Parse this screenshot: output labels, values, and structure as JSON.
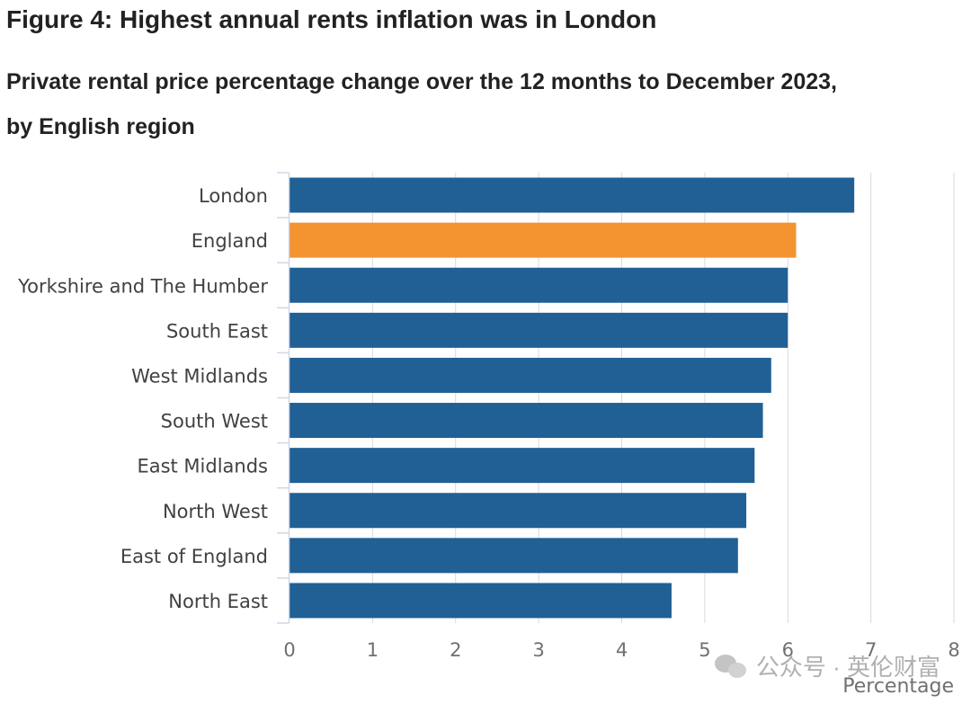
{
  "title": "Figure 4: Highest annual rents inflation was in London",
  "subtitle": "Private rental price percentage change over the 12 months to December 2023, by English region",
  "watermark": "公众号 · 英伦财富",
  "colors": {
    "default_bar": "#206095",
    "highlight_bar": "#F39431",
    "grid": "#d9d9d9",
    "tick_text": "#707070",
    "category_text": "#414042"
  },
  "chart_data": {
    "type": "bar",
    "orientation": "horizontal",
    "categories": [
      "London",
      "England",
      "Yorkshire and The Humber",
      "South East",
      "West Midlands",
      "South West",
      "East Midlands",
      "North West",
      "East of England",
      "North East"
    ],
    "values": [
      6.8,
      6.1,
      6.0,
      6.0,
      5.8,
      5.7,
      5.6,
      5.5,
      5.4,
      4.6
    ],
    "highlight": [
      "England"
    ],
    "xlabel": "Percentage",
    "ylabel": "",
    "xlim": [
      0,
      8
    ],
    "xticks": [
      0,
      1,
      2,
      3,
      4,
      5,
      6,
      7,
      8
    ],
    "grid": true
  }
}
